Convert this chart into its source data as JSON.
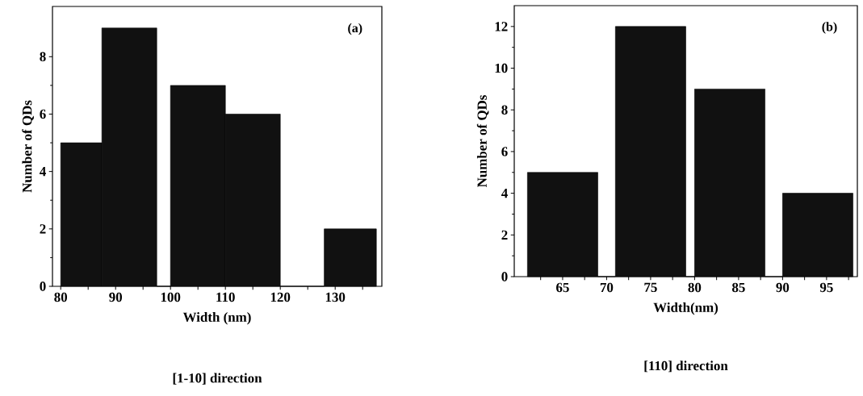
{
  "chart_data": [
    {
      "type": "histogram",
      "xlabel": "Width (nm)",
      "ylabel": "Number of QDs",
      "annotations": [
        "(a)",
        "[1-10] direction"
      ],
      "bins": [
        80,
        87.5,
        97.5,
        100,
        110,
        120,
        128,
        137.5
      ],
      "values": [
        5,
        9,
        0,
        7,
        6,
        0,
        2
      ],
      "color": "#111111",
      "xlim": [
        78.5,
        138.5
      ],
      "ylim": [
        0,
        9.75
      ],
      "xticks": [
        80,
        {
          "value": 85,
          "label": null
        },
        90,
        {
          "value": 95,
          "label": null
        },
        100,
        {
          "value": 105,
          "label": null
        },
        110,
        {
          "value": 115,
          "label": null
        },
        120,
        {
          "value": 125,
          "label": null
        },
        130,
        {
          "value": 135,
          "label": null
        }
      ],
      "yticks": [
        0,
        2,
        4,
        6,
        8
      ]
    },
    {
      "type": "histogram",
      "xlabel": "Width(nm)",
      "ylabel": "Number of QDs",
      "annotations": [
        "(b)",
        "[110] direction"
      ],
      "bins": [
        61,
        69,
        71,
        79,
        80,
        88,
        90,
        98
      ],
      "values": [
        5,
        0,
        12,
        0,
        9,
        0,
        4
      ],
      "color": "#111111",
      "xlim": [
        59.5,
        98.5
      ],
      "ylim": [
        0,
        13
      ],
      "xticks": [
        {
          "value": 62.5,
          "label": null
        },
        65,
        {
          "value": 67.5,
          "label": null
        },
        70,
        {
          "value": 72.5,
          "label": null
        },
        75,
        {
          "value": 77.5,
          "label": null
        },
        80,
        {
          "value": 82.5,
          "label": null
        },
        85,
        {
          "value": 87.5,
          "label": null
        },
        90,
        {
          "value": 92.5,
          "label": null
        },
        95,
        {
          "value": 97.5,
          "label": null
        }
      ],
      "yticks": [
        0,
        2,
        4,
        6,
        8,
        10,
        12
      ]
    }
  ]
}
